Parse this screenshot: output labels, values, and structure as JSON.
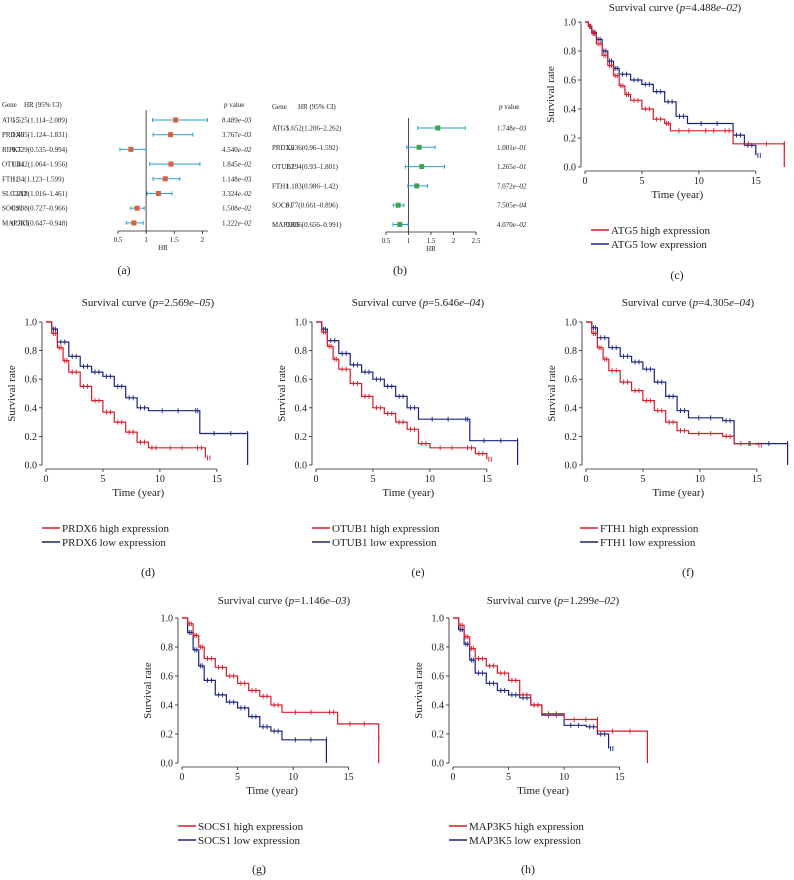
{
  "colors": {
    "high": "#d81b2a",
    "low": "#1a237e",
    "forest_a_point": "#d9603b",
    "forest_b_point": "#3fa34d",
    "ci": "#2a9fd6"
  },
  "forest_a": {
    "panel_label": "(a)",
    "header_gene": "Gene",
    "header_hr": "HR (95% CI)",
    "header_p_em": "p",
    "header_p": " value",
    "xlabel": "HR",
    "xlim": [
      0.5,
      2.1
    ],
    "ref": 1,
    "ticks": [
      0.5,
      1,
      1.5,
      2
    ],
    "rows": [
      {
        "gene": "ATG5",
        "hr_text": "1.525(1.114–2.089)",
        "hr": 1.525,
        "lo": 1.114,
        "hi": 2.089,
        "p_mant": "8.489",
        "p_exp": "e–03"
      },
      {
        "gene": "PRDX6",
        "hr_text": "1.435(1.124–1.831)",
        "hr": 1.435,
        "lo": 1.124,
        "hi": 1.831,
        "p_mant": "3.767",
        "p_exp": "e–03"
      },
      {
        "gene": "RIPK1",
        "hr_text": "0.729(0.535–0.994)",
        "hr": 0.729,
        "lo": 0.535,
        "hi": 0.994,
        "p_mant": "4.540",
        "p_exp": "e–02"
      },
      {
        "gene": "OTUB1",
        "hr_text": "1.442(1.064–1.956)",
        "hr": 1.442,
        "lo": 1.064,
        "hi": 1.956,
        "p_mant": "1.845",
        "p_exp": "e–02"
      },
      {
        "gene": "FTH1",
        "hr_text": "1.34(1.123–1.599)",
        "hr": 1.34,
        "lo": 1.123,
        "hi": 1.599,
        "p_mant": "1.148",
        "p_exp": "e–03"
      },
      {
        "gene": "SLC3A2",
        "hr_text": "1.218(1.016–1.461)",
        "hr": 1.218,
        "lo": 1.016,
        "hi": 1.461,
        "p_mant": "3.324",
        "p_exp": "e–02"
      },
      {
        "gene": "SOCS1",
        "hr_text": "0.838(0.727–0.966)",
        "hr": 0.838,
        "lo": 0.727,
        "hi": 0.966,
        "p_mant": "1.508",
        "p_exp": "e–02"
      },
      {
        "gene": "MAP3K5",
        "hr_text": "0.783(0.647–0.948)",
        "hr": 0.783,
        "lo": 0.647,
        "hi": 0.948,
        "p_mant": "1.222",
        "p_exp": "e–02"
      }
    ]
  },
  "forest_b": {
    "panel_label": "(b)",
    "header_gene": "Gene",
    "header_hr": "HR (95% CI)",
    "header_p_em": "p",
    "header_p": " value",
    "xlabel": "HR",
    "xlim": [
      0.5,
      2.5
    ],
    "ref": 1,
    "ticks": [
      0.5,
      1,
      1.5,
      2,
      2.5
    ],
    "rows": [
      {
        "gene": "ATG5",
        "hr_text": "1.652(1.206–2.262)",
        "hr": 1.652,
        "lo": 1.206,
        "hi": 2.262,
        "p_mant": "1.748",
        "p_exp": "e–03"
      },
      {
        "gene": "PRDX6",
        "hr_text": "1.236(0.96–1.592)",
        "hr": 1.236,
        "lo": 0.96,
        "hi": 1.592,
        "p_mant": "1.001",
        "p_exp": "e–01"
      },
      {
        "gene": "OTUB1",
        "hr_text": "1.294(0.93–1.801)",
        "hr": 1.294,
        "lo": 0.93,
        "hi": 1.801,
        "p_mant": "1.265",
        "p_exp": "e–01"
      },
      {
        "gene": "FTH1",
        "hr_text": "1.183(0.986–1.42)",
        "hr": 1.183,
        "lo": 0.986,
        "hi": 1.42,
        "p_mant": "7.072",
        "p_exp": "e–02"
      },
      {
        "gene": "SOCS1",
        "hr_text": "0.77(0.661–0.896)",
        "hr": 0.77,
        "lo": 0.661,
        "hi": 0.896,
        "p_mant": "7.505",
        "p_exp": "e–04"
      },
      {
        "gene": "MAP3K5",
        "hr_text": "0.806(0.656–0.991)",
        "hr": 0.806,
        "lo": 0.656,
        "hi": 0.991,
        "p_mant": "4.070",
        "p_exp": "e–02"
      }
    ]
  },
  "km_common": {
    "title_prefix": "Survival curve (",
    "title_p": "p",
    "title_eq": "=",
    "title_suffix": ")",
    "xlabel": "Time (year)",
    "ylabel": "Survival rate",
    "xticks": [
      0,
      5,
      10,
      15
    ],
    "yticks": [
      "0.0",
      "0.2",
      "0.4",
      "0.6",
      "0.8",
      "1.0"
    ],
    "xlim": [
      0,
      18
    ],
    "ylim": [
      0,
      1
    ]
  },
  "chart_data": [
    {
      "type": "forest",
      "panel": "a",
      "xlabel": "HR",
      "genes": [
        "ATG5",
        "PRDX6",
        "RIPK1",
        "OTUB1",
        "FTH1",
        "SLC3A2",
        "SOCS1",
        "MAP3K5"
      ],
      "hr": [
        1.525,
        1.435,
        0.729,
        1.442,
        1.34,
        1.218,
        0.838,
        0.783
      ]
    },
    {
      "type": "forest",
      "panel": "b",
      "xlabel": "HR",
      "genes": [
        "ATG5",
        "PRDX6",
        "OTUB1",
        "FTH1",
        "SOCS1",
        "MAP3K5"
      ],
      "hr": [
        1.652,
        1.236,
        1.294,
        1.183,
        0.77,
        0.806
      ]
    },
    {
      "type": "line",
      "panel": "c",
      "gene": "ATG5",
      "p_mant": "4.488",
      "p_exp": "e–02",
      "label": "(c)",
      "series": [
        {
          "name": "ATG5 high expression",
          "group": "high",
          "points": [
            [
              0,
              1
            ],
            [
              0.3,
              0.97
            ],
            [
              0.6,
              0.92
            ],
            [
              1,
              0.85
            ],
            [
              1.5,
              0.77
            ],
            [
              2,
              0.7
            ],
            [
              2.5,
              0.63
            ],
            [
              3,
              0.56
            ],
            [
              3.5,
              0.5
            ],
            [
              4,
              0.46
            ],
            [
              5,
              0.4
            ],
            [
              6,
              0.33
            ],
            [
              7,
              0.3
            ],
            [
              7.5,
              0.25
            ],
            [
              10,
              0.25
            ],
            [
              12,
              0.25
            ],
            [
              13,
              0.16
            ],
            [
              17.5,
              0.16
            ],
            [
              17.5,
              0
            ]
          ]
        },
        {
          "name": "ATG5 low expression",
          "group": "low",
          "points": [
            [
              0,
              1
            ],
            [
              0.3,
              0.97
            ],
            [
              0.6,
              0.93
            ],
            [
              1,
              0.88
            ],
            [
              1.5,
              0.8
            ],
            [
              2,
              0.73
            ],
            [
              2.5,
              0.68
            ],
            [
              3,
              0.64
            ],
            [
              4,
              0.6
            ],
            [
              5,
              0.57
            ],
            [
              6,
              0.52
            ],
            [
              7,
              0.45
            ],
            [
              8,
              0.35
            ],
            [
              9,
              0.3
            ],
            [
              13,
              0.22
            ],
            [
              14,
              0.15
            ],
            [
              15,
              0.08
            ]
          ]
        }
      ]
    },
    {
      "type": "line",
      "panel": "d",
      "gene": "PRDX6",
      "p_mant": "2.569",
      "p_exp": "e–05",
      "label": "(d)",
      "series": [
        {
          "name": "PRDX6 high expression",
          "group": "high",
          "points": [
            [
              0,
              1
            ],
            [
              0.5,
              0.92
            ],
            [
              1,
              0.82
            ],
            [
              1.5,
              0.73
            ],
            [
              2,
              0.65
            ],
            [
              3,
              0.55
            ],
            [
              4,
              0.45
            ],
            [
              5,
              0.37
            ],
            [
              6,
              0.3
            ],
            [
              7,
              0.23
            ],
            [
              8,
              0.16
            ],
            [
              9,
              0.12
            ],
            [
              10,
              0.12
            ],
            [
              13,
              0.12
            ],
            [
              14,
              0.05
            ]
          ]
        },
        {
          "name": "PRDX6 low expression",
          "group": "low",
          "points": [
            [
              0,
              1
            ],
            [
              0.5,
              0.95
            ],
            [
              1,
              0.86
            ],
            [
              2,
              0.76
            ],
            [
              3,
              0.69
            ],
            [
              4,
              0.65
            ],
            [
              5,
              0.62
            ],
            [
              6,
              0.55
            ],
            [
              7,
              0.47
            ],
            [
              8,
              0.4
            ],
            [
              9,
              0.38
            ],
            [
              13,
              0.38
            ],
            [
              13.5,
              0.22
            ],
            [
              17.7,
              0.22
            ],
            [
              17.7,
              0
            ]
          ]
        }
      ]
    },
    {
      "type": "line",
      "panel": "e",
      "gene": "OTUB1",
      "p_mant": "5.646",
      "p_exp": "e–04",
      "label": "(e)",
      "series": [
        {
          "name": "OTUB1 high expression",
          "group": "high",
          "points": [
            [
              0,
              1
            ],
            [
              0.5,
              0.93
            ],
            [
              1,
              0.83
            ],
            [
              1.5,
              0.74
            ],
            [
              2,
              0.67
            ],
            [
              3,
              0.57
            ],
            [
              4,
              0.48
            ],
            [
              5,
              0.4
            ],
            [
              6,
              0.36
            ],
            [
              7,
              0.3
            ],
            [
              8,
              0.25
            ],
            [
              9,
              0.15
            ],
            [
              10,
              0.12
            ],
            [
              13,
              0.12
            ],
            [
              14,
              0.08
            ],
            [
              15,
              0.04
            ]
          ]
        },
        {
          "name": "OTUB1 low expression",
          "group": "low",
          "points": [
            [
              0,
              1
            ],
            [
              0.5,
              0.95
            ],
            [
              1,
              0.87
            ],
            [
              2,
              0.78
            ],
            [
              3,
              0.7
            ],
            [
              4,
              0.65
            ],
            [
              5,
              0.6
            ],
            [
              6,
              0.55
            ],
            [
              7,
              0.48
            ],
            [
              8,
              0.4
            ],
            [
              9,
              0.32
            ],
            [
              13,
              0.32
            ],
            [
              13.5,
              0.17
            ],
            [
              17.7,
              0.17
            ],
            [
              17.7,
              0
            ]
          ]
        }
      ]
    },
    {
      "type": "line",
      "panel": "f",
      "gene": "FTH1",
      "p_mant": "4.305",
      "p_exp": "e–04",
      "label": "(f)",
      "series": [
        {
          "name": "FTH1 high expression",
          "group": "high",
          "points": [
            [
              0,
              1
            ],
            [
              0.5,
              0.92
            ],
            [
              1,
              0.82
            ],
            [
              1.5,
              0.74
            ],
            [
              2,
              0.66
            ],
            [
              3,
              0.58
            ],
            [
              4,
              0.52
            ],
            [
              5,
              0.45
            ],
            [
              6,
              0.38
            ],
            [
              7,
              0.3
            ],
            [
              8,
              0.24
            ],
            [
              9,
              0.22
            ],
            [
              12,
              0.2
            ],
            [
              13,
              0.15
            ],
            [
              15,
              0.14
            ]
          ]
        },
        {
          "name": "FTH1 low expression",
          "group": "low",
          "points": [
            [
              0,
              1
            ],
            [
              0.5,
              0.96
            ],
            [
              1,
              0.89
            ],
            [
              2,
              0.82
            ],
            [
              3,
              0.76
            ],
            [
              4,
              0.72
            ],
            [
              5,
              0.67
            ],
            [
              6,
              0.58
            ],
            [
              7,
              0.48
            ],
            [
              8,
              0.38
            ],
            [
              9,
              0.33
            ],
            [
              12,
              0.31
            ],
            [
              13,
              0.15
            ],
            [
              17.7,
              0.15
            ],
            [
              17.7,
              0
            ]
          ]
        }
      ]
    },
    {
      "type": "line",
      "panel": "g",
      "gene": "SOCS1",
      "p_mant": "1.146",
      "p_exp": "e–03",
      "label": "(g)",
      "series": [
        {
          "name": "SOCS1 high expression",
          "group": "high",
          "points": [
            [
              0,
              1
            ],
            [
              0.5,
              0.96
            ],
            [
              1,
              0.88
            ],
            [
              1.5,
              0.8
            ],
            [
              2,
              0.72
            ],
            [
              3,
              0.66
            ],
            [
              4,
              0.6
            ],
            [
              5,
              0.55
            ],
            [
              6,
              0.5
            ],
            [
              7,
              0.46
            ],
            [
              8,
              0.4
            ],
            [
              9,
              0.35
            ],
            [
              13,
              0.35
            ],
            [
              14,
              0.27
            ],
            [
              17.7,
              0.17
            ],
            [
              17.7,
              0
            ]
          ]
        },
        {
          "name": "SOCS1 low expression",
          "group": "low",
          "points": [
            [
              0,
              1
            ],
            [
              0.5,
              0.9
            ],
            [
              1,
              0.78
            ],
            [
              1.5,
              0.67
            ],
            [
              2,
              0.57
            ],
            [
              3,
              0.47
            ],
            [
              4,
              0.42
            ],
            [
              5,
              0.38
            ],
            [
              6,
              0.32
            ],
            [
              7,
              0.25
            ],
            [
              8,
              0.22
            ],
            [
              9,
              0.16
            ],
            [
              13,
              0.16
            ],
            [
              13,
              0
            ]
          ]
        }
      ]
    },
    {
      "type": "line",
      "panel": "h",
      "gene": "MAP3K5",
      "p_mant": "1.299",
      "p_exp": "e–02",
      "label": "(h)",
      "series": [
        {
          "name": "MAP3K5 high expression",
          "group": "high",
          "points": [
            [
              0,
              1
            ],
            [
              0.5,
              0.95
            ],
            [
              1,
              0.87
            ],
            [
              1.5,
              0.79
            ],
            [
              2,
              0.72
            ],
            [
              3,
              0.67
            ],
            [
              4,
              0.62
            ],
            [
              5,
              0.57
            ],
            [
              6,
              0.47
            ],
            [
              7,
              0.4
            ],
            [
              8,
              0.34
            ],
            [
              10,
              0.3
            ],
            [
              13,
              0.3
            ],
            [
              13,
              0.22
            ],
            [
              17.5,
              0.15
            ],
            [
              17.5,
              0
            ]
          ]
        },
        {
          "name": "MAP3K5 low expression",
          "group": "low",
          "points": [
            [
              0,
              1
            ],
            [
              0.5,
              0.92
            ],
            [
              1,
              0.82
            ],
            [
              1.5,
              0.71
            ],
            [
              2,
              0.62
            ],
            [
              3,
              0.55
            ],
            [
              4,
              0.5
            ],
            [
              5,
              0.47
            ],
            [
              6,
              0.45
            ],
            [
              7,
              0.4
            ],
            [
              8,
              0.33
            ],
            [
              10,
              0.26
            ],
            [
              12,
              0.25
            ],
            [
              13,
              0.2
            ],
            [
              14,
              0.1
            ]
          ]
        }
      ]
    }
  ]
}
